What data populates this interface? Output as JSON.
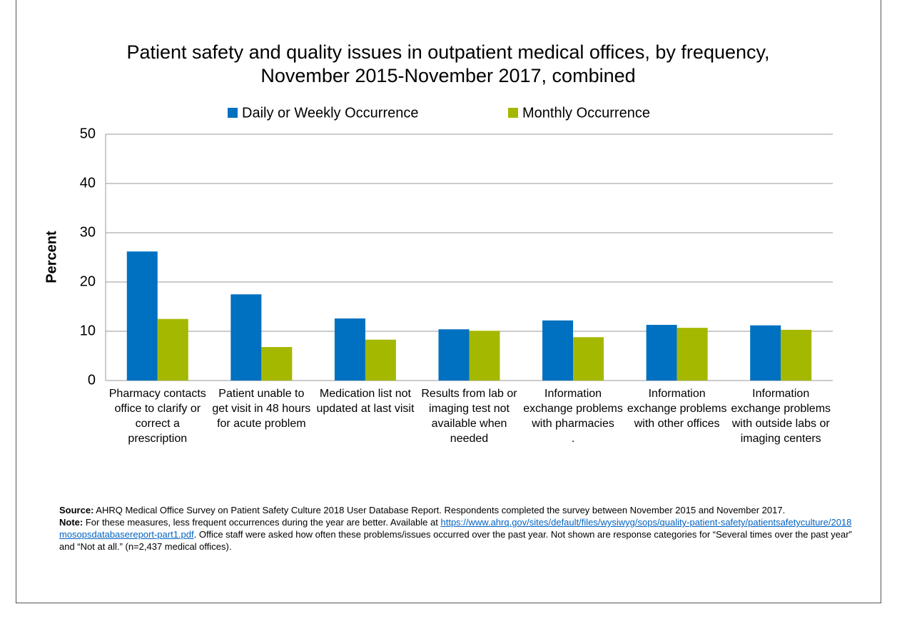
{
  "chart_data": {
    "type": "bar",
    "title": [
      "Patient safety and quality issues in outpatient medical offices, by frequency,",
      "November 2015-November 2017, combined"
    ],
    "y_label": "Percent",
    "categories": [
      "Pharmacy contacts office to clarify or correct a prescription",
      "Patient unable to get visit in 48 hours for acute problem",
      "Medication list not updated at last visit",
      "Results from lab or imaging test not available when needed",
      "Information exchange problems with pharmacies\n.",
      "Information exchange problems with other offices",
      "Information exchange problems with outside labs or imaging centers"
    ],
    "series": [
      {
        "name": "Daily or Weekly Occurrence",
        "color": "#0070c0",
        "values": [
          26.2,
          17.5,
          12.6,
          10.4,
          12.2,
          11.3,
          11.2
        ]
      },
      {
        "name": "Monthly Occurrence",
        "color": "#a5b800",
        "values": [
          12.5,
          6.8,
          8.3,
          10.1,
          8.8,
          10.7,
          10.3
        ]
      }
    ],
    "ylim": [
      0,
      50
    ],
    "yticks": [
      0,
      10,
      20,
      30,
      40,
      50
    ],
    "grid": true,
    "legend": "top"
  },
  "notes": {
    "source_label": "Source:",
    "source_text": " AHRQ Medical Office Survey on Patient Safety Culture 2018 User Database Report. Respondents completed the survey between November 2015 and November 2017.",
    "note_label": "Note:",
    "note_text_1": " For these measures, less frequent occurrences during the year are better. Available at ",
    "link": "https://www.ahrq.gov/sites/default/files/wysiwyg/sops/quality-patient-safety/patientsafetyculture/2018mosopsdatabasereport-part1.pdf",
    "note_text_2": ". Office staff were asked how often these problems/issues occurred over the past year. Not shown are response categories for “Several times over the past year” and “Not at all.” (n=2,437 medical offices)."
  }
}
